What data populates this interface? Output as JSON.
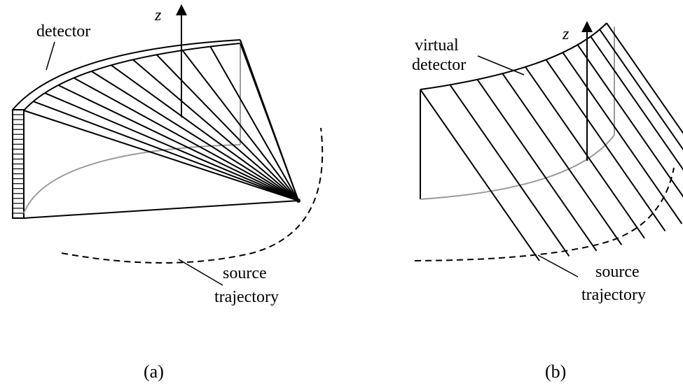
{
  "panel_a": {
    "detector_label": "detector",
    "axis_label": "z",
    "source_label_line1": "source",
    "source_label_line2": "trajectory",
    "caption": "(a)"
  },
  "panel_b": {
    "detector_label_line1": "virtual",
    "detector_label_line2": "detector",
    "axis_label": "z",
    "source_label_line1": "source",
    "source_label_line2": "trajectory",
    "caption": "(b)"
  },
  "colors": {
    "ink": "#000000",
    "gray_curve": "#9a9a9a"
  }
}
